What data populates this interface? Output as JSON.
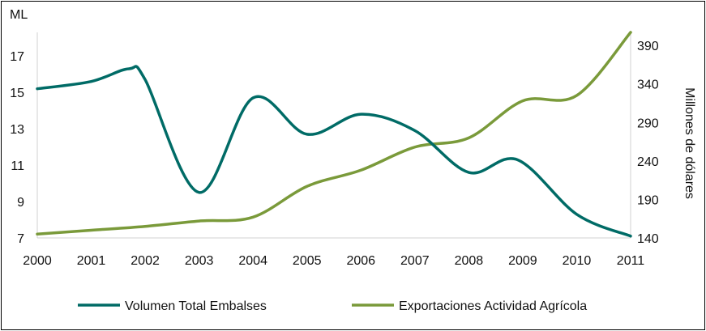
{
  "chart_data": {
    "type": "line",
    "x": [
      "2000",
      "2001",
      "2002",
      "2003",
      "2004",
      "2005",
      "2006",
      "2007",
      "2008",
      "2009",
      "2010",
      "2011"
    ],
    "series": [
      {
        "name": "Volumen Total Embalses",
        "axis": "left",
        "color": "#006b66",
        "points": [
          [
            2000,
            15.2
          ],
          [
            2001,
            15.6
          ],
          [
            2001.7,
            16.3
          ],
          [
            2002,
            15.7
          ],
          [
            2003,
            9.5
          ],
          [
            2004,
            14.7
          ],
          [
            2005,
            12.7
          ],
          [
            2006,
            13.8
          ],
          [
            2007,
            12.9
          ],
          [
            2008,
            10.6
          ],
          [
            2008.9,
            11.3
          ],
          [
            2010,
            8.3
          ],
          [
            2011,
            7.1
          ]
        ]
      },
      {
        "name": "Exportaciones Actividad Agrícola",
        "axis": "right",
        "color": "#7a9a3a",
        "points": [
          [
            2000,
            145
          ],
          [
            2001,
            150
          ],
          [
            2002,
            155
          ],
          [
            2003,
            162
          ],
          [
            2004,
            167
          ],
          [
            2005,
            207
          ],
          [
            2006,
            228
          ],
          [
            2007,
            258
          ],
          [
            2008,
            270
          ],
          [
            2009,
            318
          ],
          [
            2010,
            325
          ],
          [
            2011,
            408
          ]
        ]
      }
    ],
    "y_left": {
      "label": "ML",
      "ticks": [
        "7",
        "9",
        "11",
        "13",
        "15",
        "17"
      ],
      "range": [
        7,
        18.3
      ]
    },
    "y_right": {
      "label": "Millones de dólares",
      "ticks": [
        "140",
        "190",
        "240",
        "290",
        "340",
        "390"
      ],
      "range": [
        140,
        407
      ]
    },
    "legend": [
      "Volumen Total Embalses",
      "Exportaciones Actividad Agrícola"
    ]
  }
}
